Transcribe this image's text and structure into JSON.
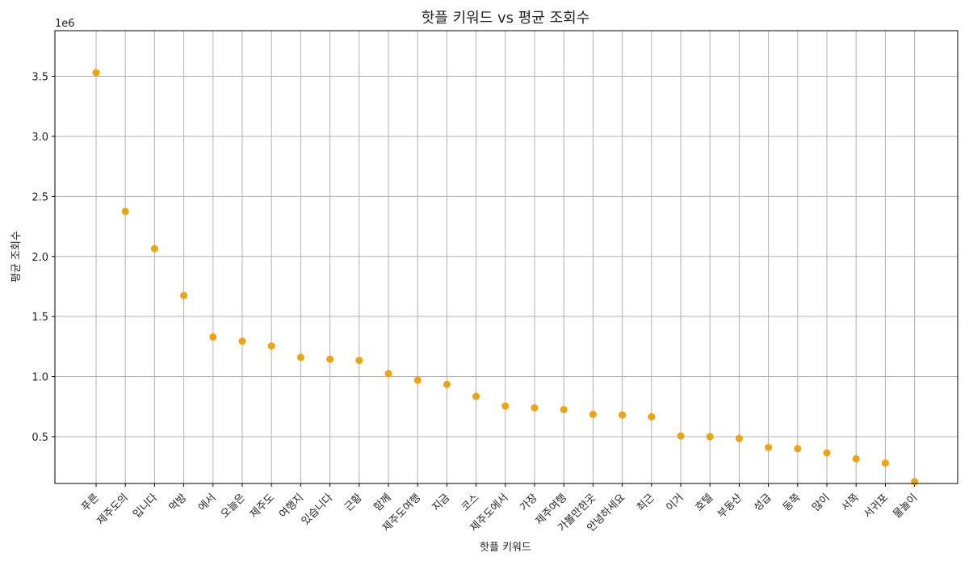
{
  "chart_data": {
    "type": "scatter",
    "title": "핫플 키워드 vs 평균 조회수",
    "xlabel": "핫플 키워드",
    "ylabel": "평균 조회수",
    "y_offset_label": "1e6",
    "categories": [
      "푸른",
      "제주도의",
      "입니다",
      "먹방",
      "에서",
      "오늘은",
      "제주도",
      "여행지",
      "있습니다",
      "근황",
      "함께",
      "제주도여행",
      "지금",
      "코스",
      "제주도에서",
      "가장",
      "제주여행",
      "가볼만한곳",
      "안녕하세요",
      "최근",
      "이거",
      "호텔",
      "부동산",
      "성급",
      "동쪽",
      "많이",
      "서쪽",
      "서귀포",
      "물놀이"
    ],
    "values": [
      3530000,
      2375000,
      2065000,
      1675000,
      1330000,
      1295000,
      1255000,
      1160000,
      1145000,
      1135000,
      1025000,
      970000,
      935000,
      835000,
      755000,
      740000,
      725000,
      685000,
      680000,
      665000,
      505000,
      500000,
      485000,
      410000,
      400000,
      365000,
      315000,
      280000,
      125000
    ],
    "ylim": [
      110000,
      3880000
    ],
    "yticks": [
      500000,
      1000000,
      1500000,
      2000000,
      2500000,
      3000000,
      3500000
    ],
    "ytick_labels": [
      "0.5",
      "1.0",
      "1.5",
      "2.0",
      "2.5",
      "3.0",
      "3.5"
    ],
    "marker_color": "#f0a30a",
    "grid": true
  }
}
